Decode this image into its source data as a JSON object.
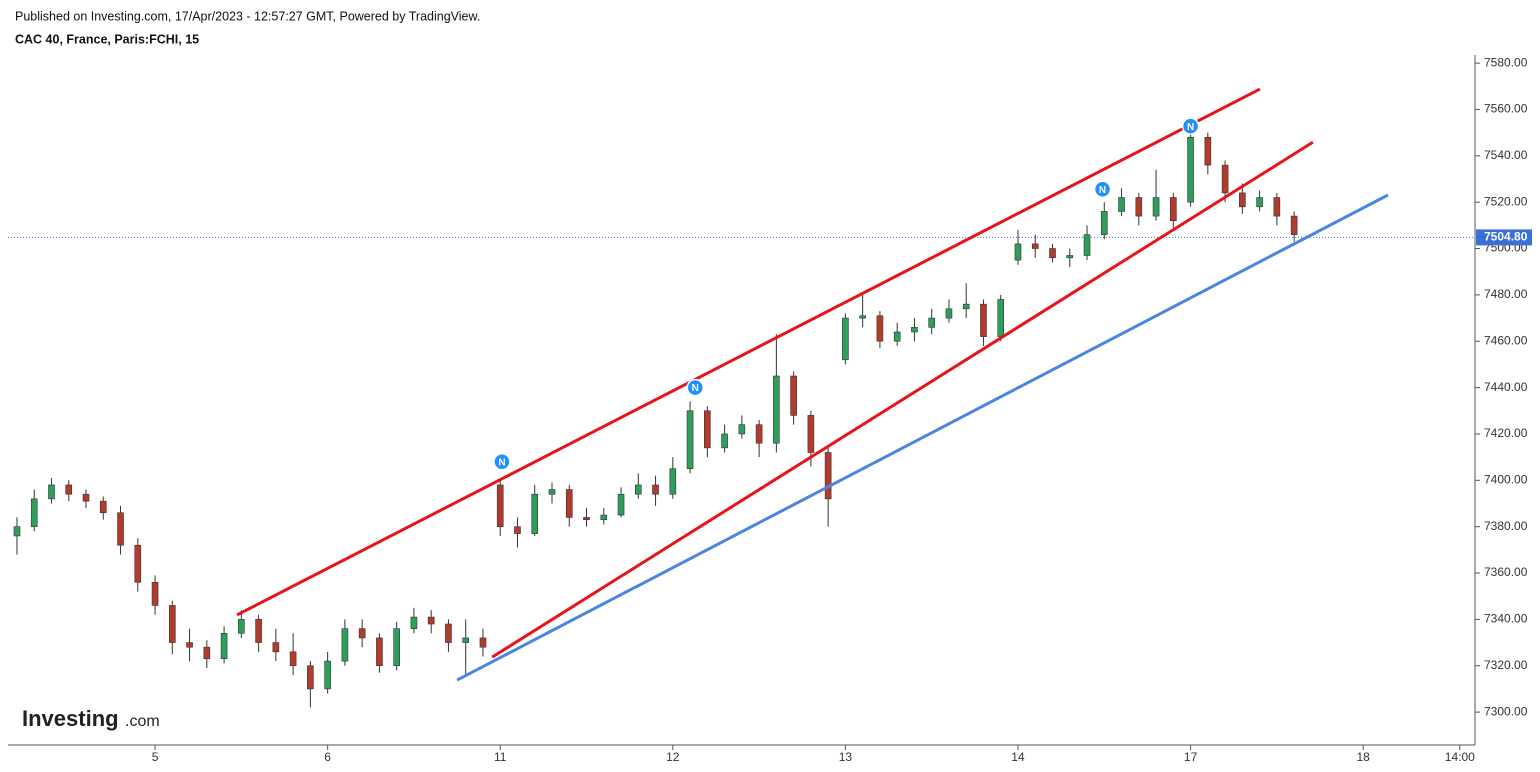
{
  "chart_data": {
    "type": "candlestick",
    "published_note": "Published on Investing.com, 17/Apr/2023 - 12:57:27 GMT, Powered by TradingView.",
    "title": "CAC 40, France, Paris:FCHI, 15",
    "logo": {
      "name": "Investing",
      "suffix": ".com"
    },
    "xlim": [
      -0.852,
      7.648
    ],
    "xticks": [
      {
        "value": 0,
        "label": "5"
      },
      {
        "value": 1,
        "label": "6"
      },
      {
        "value": 2,
        "label": "11"
      },
      {
        "value": 3,
        "label": "12"
      },
      {
        "value": 4,
        "label": "13"
      },
      {
        "value": 5,
        "label": "14"
      },
      {
        "value": 6,
        "label": "17"
      },
      {
        "value": 7,
        "label": "18"
      },
      {
        "value": 7.56,
        "label": "14:00"
      }
    ],
    "ylim": [
      7285.8,
      7583.5
    ],
    "yticks": [
      {
        "value": 7300,
        "label": "7300.00"
      },
      {
        "value": 7320,
        "label": "7320.00"
      },
      {
        "value": 7340,
        "label": "7340.00"
      },
      {
        "value": 7360,
        "label": "7360.00"
      },
      {
        "value": 7380,
        "label": "7380.00"
      },
      {
        "value": 7400,
        "label": "7400.00"
      },
      {
        "value": 7420,
        "label": "7420.00"
      },
      {
        "value": 7440,
        "label": "7440.00"
      },
      {
        "value": 7460,
        "label": "7460.00"
      },
      {
        "value": 7480,
        "label": "7480.00"
      },
      {
        "value": 7500,
        "label": "7500.00"
      },
      {
        "value": 7520,
        "label": "7520.00"
      },
      {
        "value": 7540,
        "label": "7540.00"
      },
      {
        "value": 7560,
        "label": "7560.00"
      },
      {
        "value": 7580,
        "label": "7580.00"
      }
    ],
    "up_color": "#2e9e5b",
    "down_color": "#b23b2e",
    "x": [
      -0.8,
      -0.7,
      -0.6,
      -0.5,
      -0.4,
      -0.3,
      -0.2,
      -0.1,
      0.0,
      0.1,
      0.2,
      0.3,
      0.4,
      0.5,
      0.6,
      0.7,
      0.8,
      0.9,
      1.0,
      1.1,
      1.2,
      1.3,
      1.4,
      1.5,
      1.6,
      1.7,
      1.8,
      1.9,
      2.0,
      2.1,
      2.2,
      2.3,
      2.4,
      2.5,
      2.6,
      2.7,
      2.8,
      2.9,
      3.0,
      3.1,
      3.2,
      3.3,
      3.4,
      3.5,
      3.6,
      3.7,
      3.8,
      3.9,
      4.0,
      4.1,
      4.2,
      4.3,
      4.4,
      4.5,
      4.6,
      4.7,
      4.8,
      4.9,
      5.0,
      5.1,
      5.2,
      5.3,
      5.4,
      5.5,
      5.6,
      5.7,
      5.8,
      5.9,
      6.0,
      6.1,
      6.2,
      6.3,
      6.4,
      6.5,
      6.6
    ],
    "open": [
      7376,
      7380,
      7392,
      7398,
      7394,
      7391,
      7386,
      7372,
      7356,
      7346,
      7330,
      7328,
      7323,
      7334,
      7340,
      7330,
      7326,
      7320,
      7310,
      7322,
      7336,
      7332,
      7320,
      7336,
      7341,
      7338,
      7330,
      7332,
      7398,
      7380,
      7377,
      7394,
      7396,
      7384,
      7383,
      7385,
      7394,
      7398,
      7394,
      7405,
      7430,
      7414,
      7420,
      7424,
      7416,
      7445,
      7428,
      7412,
      7452,
      7470,
      7471,
      7460,
      7464,
      7466,
      7470,
      7474,
      7476,
      7462,
      7495,
      7502,
      7500,
      7496,
      7497,
      7506,
      7516,
      7522,
      7514,
      7522,
      7520,
      7548,
      7536,
      7524,
      7518,
      7522,
      7514
    ],
    "high": [
      7384,
      7396,
      7401,
      7400,
      7396,
      7393,
      7389,
      7375,
      7359,
      7348,
      7336,
      7331,
      7337,
      7344,
      7342,
      7336,
      7334,
      7322,
      7326,
      7340,
      7340,
      7334,
      7339,
      7345,
      7344,
      7340,
      7340,
      7336,
      7400,
      7384,
      7398,
      7399,
      7398,
      7388,
      7388,
      7397,
      7403,
      7402,
      7410,
      7434,
      7432,
      7424,
      7428,
      7426,
      7463,
      7447,
      7430,
      7414,
      7472,
      7481,
      7473,
      7468,
      7470,
      7474,
      7478,
      7485,
      7478,
      7480,
      7508,
      7506,
      7502,
      7500,
      7510,
      7520,
      7526,
      7524,
      7534,
      7524,
      7553,
      7550,
      7538,
      7528,
      7525,
      7524,
      7516
    ],
    "low": [
      7368,
      7378,
      7390,
      7391,
      7388,
      7383,
      7368,
      7352,
      7342,
      7325,
      7322,
      7319,
      7321,
      7332,
      7326,
      7322,
      7316,
      7302,
      7308,
      7320,
      7328,
      7317,
      7318,
      7334,
      7334,
      7326,
      7316,
      7324,
      7376,
      7371,
      7376,
      7390,
      7380,
      7380,
      7381,
      7384,
      7392,
      7389,
      7392,
      7403,
      7410,
      7412,
      7418,
      7410,
      7412,
      7424,
      7406,
      7380,
      7450,
      7466,
      7457,
      7458,
      7460,
      7463,
      7468,
      7470,
      7458,
      7460,
      7493,
      7496,
      7494,
      7492,
      7495,
      7504,
      7514,
      7510,
      7512,
      7509,
      7518,
      7532,
      7520,
      7515,
      7516,
      7510,
      7503
    ],
    "close": [
      7380,
      7392,
      7398,
      7394,
      7391,
      7386,
      7372,
      7356,
      7346,
      7330,
      7328,
      7323,
      7334,
      7340,
      7330,
      7326,
      7320,
      7310,
      7322,
      7336,
      7332,
      7320,
      7336,
      7341,
      7338,
      7330,
      7332,
      7328,
      7380,
      7377,
      7394,
      7396,
      7384,
      7383,
      7385,
      7394,
      7398,
      7394,
      7405,
      7430,
      7414,
      7420,
      7424,
      7416,
      7445,
      7428,
      7412,
      7392,
      7470,
      7471,
      7460,
      7464,
      7466,
      7470,
      7474,
      7476,
      7462,
      7478,
      7502,
      7500,
      7496,
      7497,
      7506,
      7516,
      7522,
      7514,
      7522,
      7512,
      7548,
      7536,
      7524,
      7518,
      7522,
      7514,
      7506
    ],
    "trendlines": [
      {
        "color": "#e8141b",
        "x": [
          0.475,
          6.402
        ],
        "y": [
          7341.9,
          7568.8
        ]
      },
      {
        "color": "#e8141b",
        "x": [
          1.953,
          6.709
        ],
        "y": [
          7323.7,
          7545.9
        ]
      },
      {
        "color": "#4a86e0",
        "x": [
          1.75,
          7.144
        ],
        "y": [
          7313.8,
          7523.1
        ]
      }
    ],
    "last_price": {
      "value": 7504.8,
      "label": "7504.80",
      "color": "#3b6fd8"
    },
    "annotations": [
      {
        "x": 2.01,
        "y": 7408,
        "label": "N"
      },
      {
        "x": 3.13,
        "y": 7440,
        "label": "N"
      },
      {
        "x": 5.49,
        "y": 7525.6,
        "label": "N"
      },
      {
        "x": 6.0,
        "y": 7552.8,
        "label": "N"
      }
    ]
  }
}
